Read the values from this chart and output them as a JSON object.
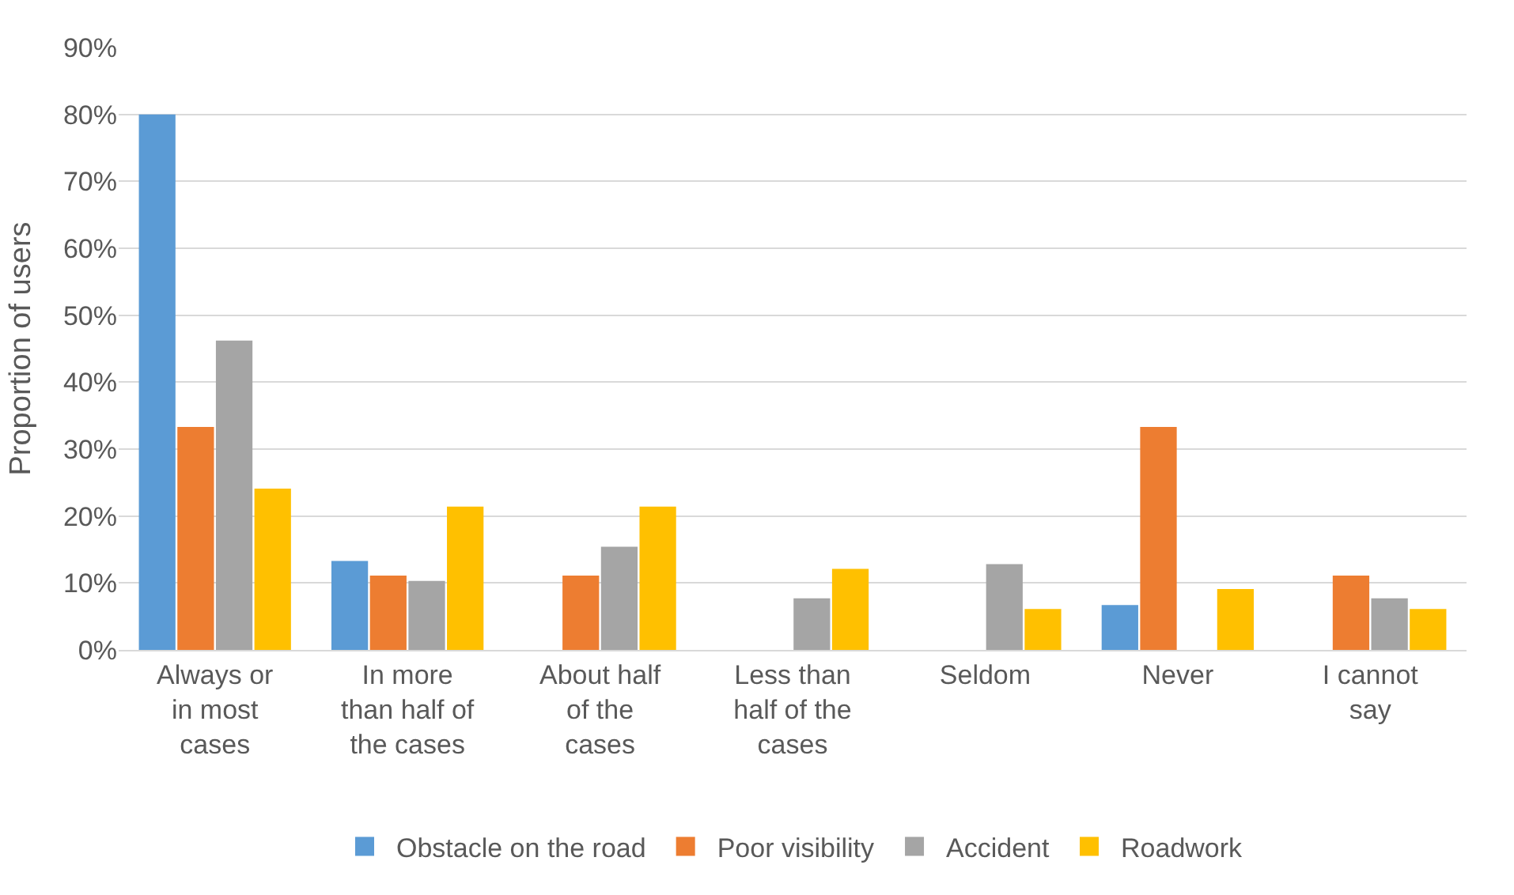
{
  "chart_data": {
    "type": "bar",
    "ylabel": "Proportion of users",
    "categories": [
      "Always or\nin most\ncases",
      "In more\nthan half of\nthe cases",
      "About half\nof the\ncases",
      "Less than\nhalf of the\ncases",
      "Seldom",
      "Never",
      "I cannot\nsay"
    ],
    "series": [
      {
        "name": "Obstacle on the road",
        "color": "#5b9bd5",
        "values": [
          80,
          13.3,
          0,
          0,
          0,
          6.7,
          0
        ]
      },
      {
        "name": "Poor visibility",
        "color": "#ed7d31",
        "values": [
          33.3,
          11.1,
          11.1,
          0,
          0,
          33.3,
          11.1
        ]
      },
      {
        "name": "Accident",
        "color": "#a5a5a5",
        "values": [
          46.2,
          10.3,
          15.4,
          7.7,
          12.8,
          0,
          7.7
        ]
      },
      {
        "name": "Roadwork",
        "color": "#ffc000",
        "values": [
          24.1,
          21.4,
          21.4,
          12.1,
          6.1,
          9.1,
          6.1
        ]
      }
    ],
    "ylim": [
      0,
      90
    ],
    "yticks": [
      {
        "value": 0,
        "label": "0%"
      },
      {
        "value": 10,
        "label": "10%"
      },
      {
        "value": 20,
        "label": "20%"
      },
      {
        "value": 30,
        "label": "30%"
      },
      {
        "value": 40,
        "label": "40%"
      },
      {
        "value": 50,
        "label": "50%"
      },
      {
        "value": 60,
        "label": "60%"
      },
      {
        "value": 70,
        "label": "70%"
      },
      {
        "value": 80,
        "label": "80%"
      },
      {
        "value": 90,
        "label": "90%"
      }
    ],
    "grid": "y",
    "legend": "bottom"
  }
}
